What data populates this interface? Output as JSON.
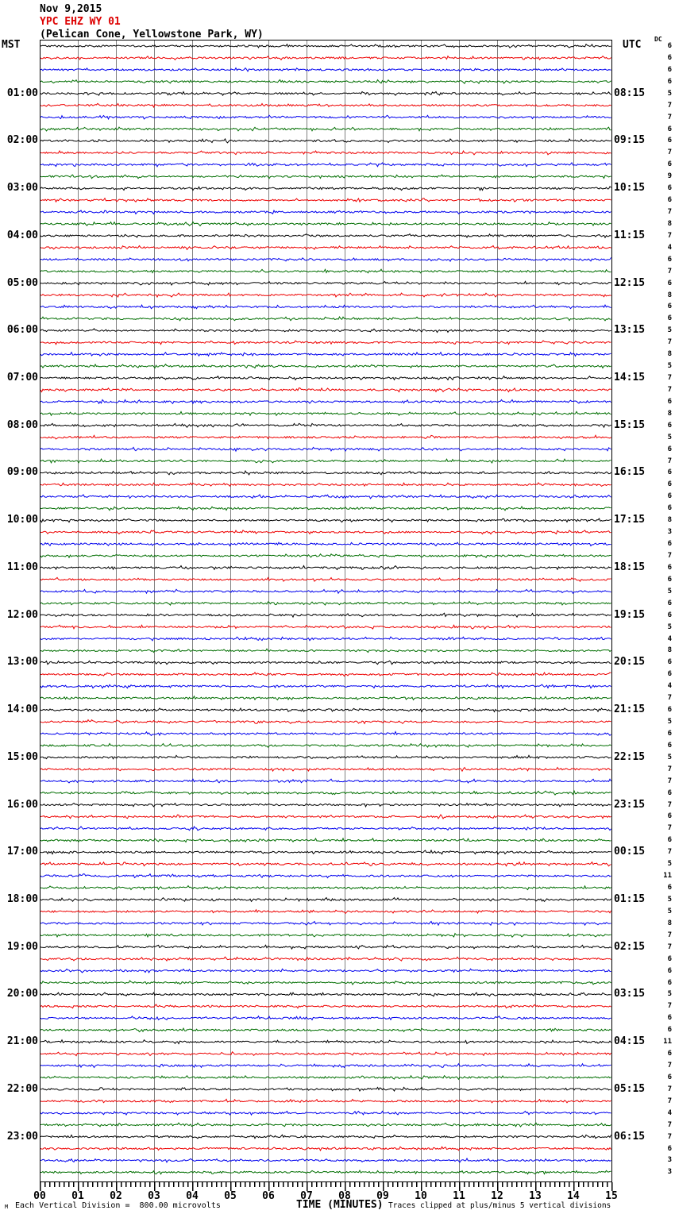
{
  "header": {
    "date_line": "Nov 9,2015",
    "station_line": "YPC EHZ WY 01",
    "location_line": "(Pelican Cone, Yellowstone Park, WY)"
  },
  "axis": {
    "left_timezone": "MST",
    "right_timezone": "UTC",
    "dc_header": "DC",
    "x_axis_title": "TIME (MINUTES)",
    "x_tick_labels": [
      "00",
      "01",
      "02",
      "03",
      "04",
      "05",
      "06",
      "07",
      "08",
      "09",
      "10",
      "11",
      "12",
      "13",
      "14",
      "15"
    ]
  },
  "footer": {
    "corner_mark": "M",
    "scale_note": "Each Vertical Division =  800.00 microvolts",
    "clip_note": "Traces clipped at plus/minus 5 vertical divisions"
  },
  "colors": {
    "background": "#ffffff",
    "grid": "#808080",
    "border": "#000000",
    "text": "#000000",
    "station_text": "#dd0000"
  },
  "chart_data": {
    "type": "line",
    "subtype": "helicorder-seismogram",
    "title": "YPC EHZ WY 01 (Pelican Cone, Yellowstone Park, WY) Nov 9,2015",
    "xlabel": "TIME (MINUTES)",
    "x_range": [
      0,
      15
    ],
    "x_major_tick": 1,
    "x_minor_subdivisions_per_major": 8,
    "grid": "vertical gray line at every minute, full plot height",
    "legend_position": "none",
    "minutes_per_line": 15,
    "lines_per_hour": 4,
    "total_lines": 96,
    "trace_color_cycle_names": [
      "black",
      "red",
      "blue",
      "green"
    ],
    "trace_colors": [
      "#000000",
      "#ee0000",
      "#0000ee",
      "#006e00"
    ],
    "left_hour_labels_mst": [
      "01:00",
      "02:00",
      "03:00",
      "04:00",
      "05:00",
      "06:00",
      "07:00",
      "08:00",
      "09:00",
      "10:00",
      "11:00",
      "12:00",
      "13:00",
      "14:00",
      "15:00",
      "16:00",
      "17:00",
      "18:00",
      "19:00",
      "20:00",
      "21:00",
      "22:00",
      "23:00"
    ],
    "right_hour_labels_utc": [
      "08:15",
      "09:15",
      "10:15",
      "11:15",
      "12:15",
      "13:15",
      "14:15",
      "15:15",
      "16:15",
      "17:15",
      "18:15",
      "19:15",
      "20:15",
      "21:15",
      "22:15",
      "23:15",
      "00:15",
      "01:15",
      "02:15",
      "03:15",
      "04:15",
      "05:15",
      "06:15"
    ],
    "dc_values": [
      6,
      6,
      6,
      6,
      5,
      7,
      7,
      6,
      6,
      7,
      6,
      9,
      6,
      6,
      7,
      8,
      7,
      4,
      6,
      7,
      6,
      8,
      6,
      6,
      5,
      7,
      8,
      5,
      7,
      7,
      6,
      8,
      6,
      5,
      6,
      7,
      6,
      6,
      6,
      6,
      8,
      3,
      6,
      7,
      6,
      6,
      5,
      6,
      6,
      5,
      4,
      8,
      6,
      6,
      4,
      7,
      6,
      5,
      6,
      6,
      5,
      7,
      7,
      6,
      7,
      6,
      7,
      6,
      7,
      5,
      11,
      6,
      5,
      5,
      8,
      7,
      7,
      6,
      6,
      6,
      5,
      7,
      6,
      6,
      11,
      6,
      7,
      6,
      7,
      7,
      4,
      7,
      7,
      6,
      3,
      3
    ],
    "waveform": "continuous low-amplitude background noise on all 96 lines; no visible seismic events",
    "scale": "800.00 microvolts per vertical division",
    "clipping": "traces clipped at plus/minus 5 vertical divisions"
  }
}
